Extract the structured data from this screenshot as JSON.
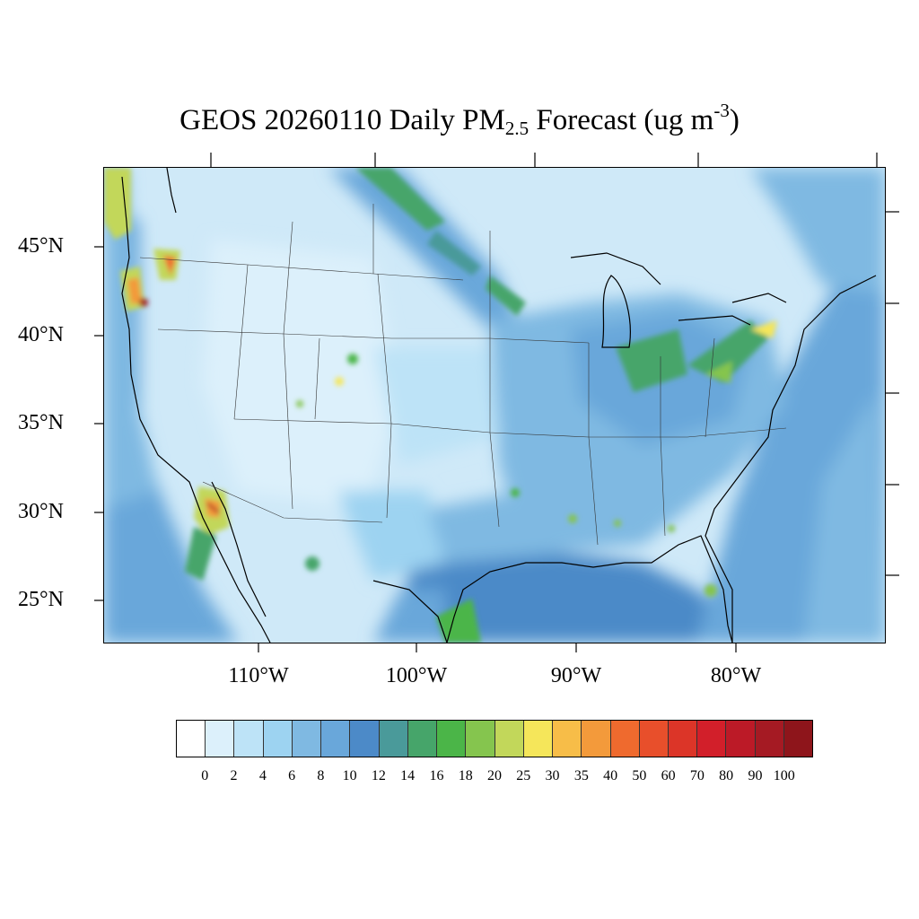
{
  "title": {
    "main": "GEOS 20260110 Daily PM",
    "subscript": "2.5",
    "middle": " Forecast (ug m",
    "superscript": "-3",
    "end": ")"
  },
  "map": {
    "region": "Contiguous United States",
    "latitude_labels": [
      "45°N",
      "40°N",
      "35°N",
      "30°N",
      "25°N"
    ],
    "longitude_labels": [
      "110°W",
      "100°W",
      "90°W",
      "80°W"
    ],
    "background_color": "#dcf0fb",
    "hotspots": [
      {
        "place": "western Oregon",
        "level": "70-100"
      },
      {
        "place": "central Oregon",
        "level": "40-60"
      },
      {
        "place": "southern California / Los Angeles",
        "level": "50-90"
      },
      {
        "place": "Salt Lake City area",
        "level": "16-20"
      },
      {
        "place": "Denver area",
        "level": "30-35"
      },
      {
        "place": "Ohio Valley",
        "level": "16-20"
      },
      {
        "place": "Mid-Atlantic / New York",
        "level": "18-25"
      }
    ]
  },
  "colorbar": {
    "labels": [
      "0",
      "2",
      "4",
      "6",
      "8",
      "10",
      "12",
      "14",
      "16",
      "18",
      "20",
      "25",
      "30",
      "35",
      "40",
      "50",
      "60",
      "70",
      "80",
      "90",
      "100"
    ],
    "colors": [
      "#ffffff",
      "#dcf0fb",
      "#bde3f7",
      "#9dd3f1",
      "#7fb9e2",
      "#69a7da",
      "#4c8ac8",
      "#4a9a9a",
      "#46a56a",
      "#4bb548",
      "#85c54e",
      "#c2d75a",
      "#f5e65a",
      "#f7bd48",
      "#f39a3b",
      "#ef6a2e",
      "#e84f2b",
      "#dc3528",
      "#d21f2a",
      "#bc1a27",
      "#a51a23",
      "#8e151b"
    ]
  }
}
